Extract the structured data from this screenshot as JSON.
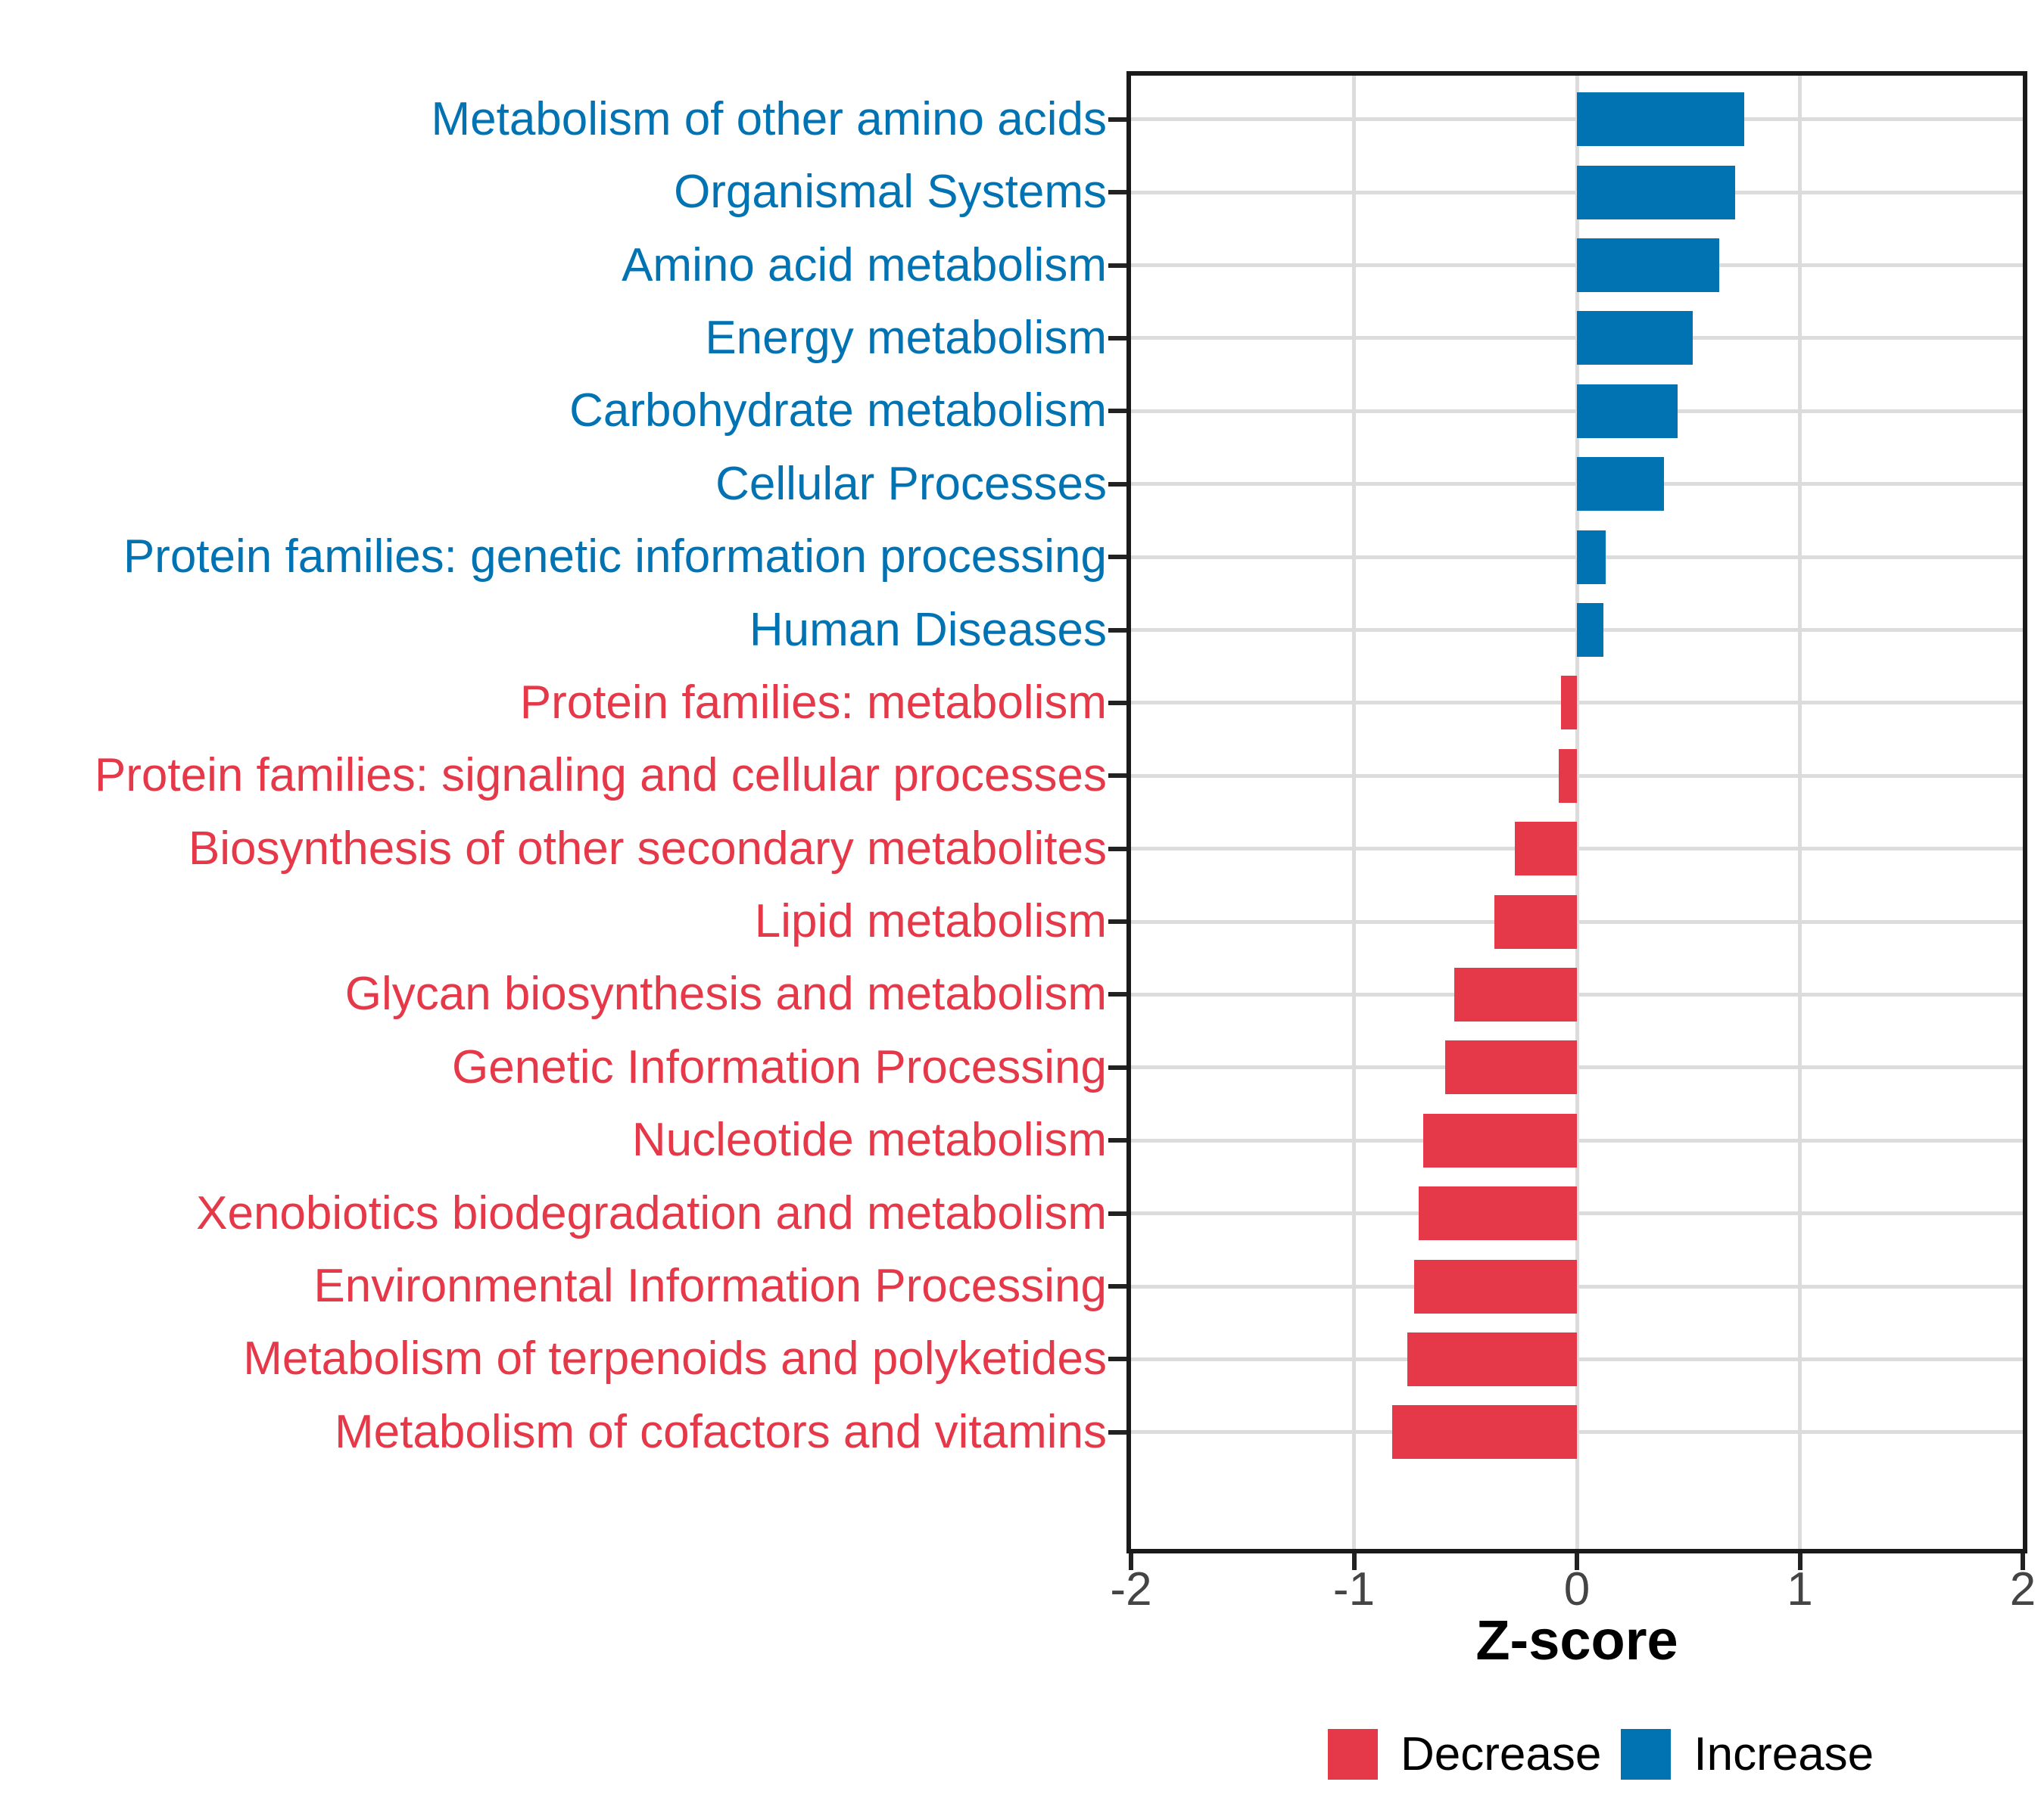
{
  "figure": {
    "xlabel": "Z-score",
    "legend": [
      {
        "label": "Decrease",
        "color": "#E53849"
      },
      {
        "label": "Increase",
        "color": "#0173B3"
      }
    ]
  },
  "chart_data": {
    "type": "bar",
    "orientation": "horizontal",
    "title": "",
    "xlabel": "Z-score",
    "ylabel": "",
    "xlim": [
      -2,
      2
    ],
    "x_ticks": [
      -2,
      -1,
      0,
      1,
      2
    ],
    "grid": true,
    "legend_position": "bottom",
    "colors": {
      "increase": "#0173B3",
      "decrease": "#E53849"
    },
    "categories": [
      {
        "label": "Metabolism of other amino acids",
        "value": 0.75,
        "direction": "increase"
      },
      {
        "label": "Organismal Systems",
        "value": 0.71,
        "direction": "increase"
      },
      {
        "label": "Amino acid metabolism",
        "value": 0.64,
        "direction": "increase"
      },
      {
        "label": "Energy metabolism",
        "value": 0.52,
        "direction": "increase"
      },
      {
        "label": "Carbohydrate metabolism",
        "value": 0.45,
        "direction": "increase"
      },
      {
        "label": "Cellular Processes",
        "value": 0.39,
        "direction": "increase"
      },
      {
        "label": "Protein families: genetic information processing",
        "value": 0.13,
        "direction": "increase"
      },
      {
        "label": "Human Diseases",
        "value": 0.12,
        "direction": "increase"
      },
      {
        "label": "Protein families: metabolism",
        "value": -0.07,
        "direction": "decrease"
      },
      {
        "label": "Protein families: signaling and cellular processes",
        "value": -0.08,
        "direction": "decrease"
      },
      {
        "label": "Biosynthesis of other secondary metabolites",
        "value": -0.28,
        "direction": "decrease"
      },
      {
        "label": "Lipid metabolism",
        "value": -0.37,
        "direction": "decrease"
      },
      {
        "label": "Glycan biosynthesis and metabolism",
        "value": -0.55,
        "direction": "decrease"
      },
      {
        "label": "Genetic Information Processing",
        "value": -0.59,
        "direction": "decrease"
      },
      {
        "label": "Nucleotide metabolism",
        "value": -0.69,
        "direction": "decrease"
      },
      {
        "label": "Xenobiotics biodegradation and metabolism",
        "value": -0.71,
        "direction": "decrease"
      },
      {
        "label": "Environmental Information Processing",
        "value": -0.73,
        "direction": "decrease"
      },
      {
        "label": "Metabolism of terpenoids and polyketides",
        "value": -0.76,
        "direction": "decrease"
      },
      {
        "label": "Metabolism of cofactors and vitamins",
        "value": -0.83,
        "direction": "decrease"
      }
    ]
  }
}
